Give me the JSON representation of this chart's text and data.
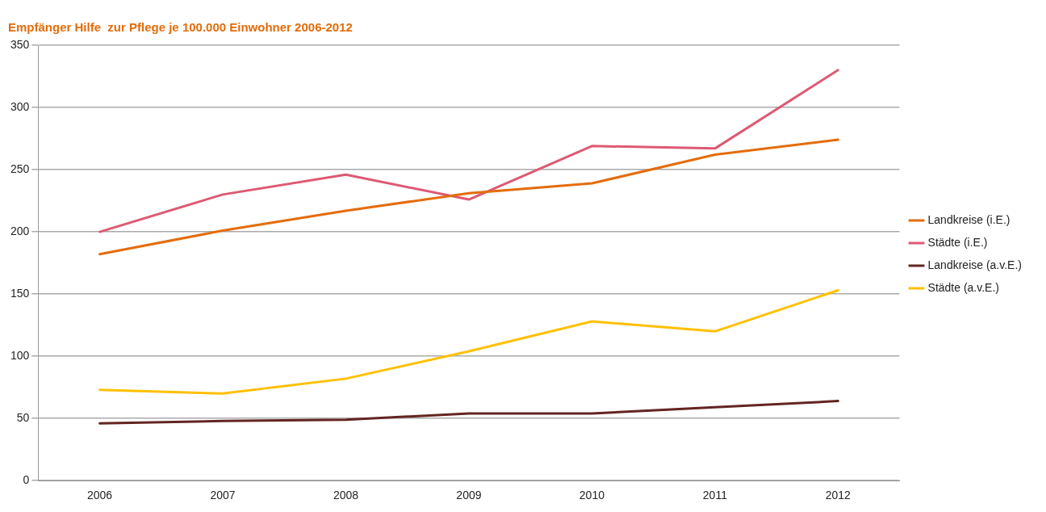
{
  "chart_data": {
    "type": "line",
    "title": "Empfänger Hilfe  zur Pflege je 100.000 Einwohner 2006-2012",
    "categories": [
      "2006",
      "2007",
      "2008",
      "2009",
      "2010",
      "2011",
      "2012"
    ],
    "series": [
      {
        "name": "Landkreise (i.E.)",
        "color": "#e46c0a",
        "values": [
          182,
          201,
          217,
          231,
          239,
          262,
          274
        ]
      },
      {
        "name": "Städte (i.E.)",
        "color": "#dd5a73",
        "values": [
          200,
          230,
          246,
          226,
          269,
          267,
          330
        ]
      },
      {
        "name": "Landkreise (a.v.E.)",
        "color": "#632523",
        "values": [
          46,
          48,
          49,
          54,
          54,
          59,
          64
        ]
      },
      {
        "name": "Städte (a.v.E.)",
        "color": "#ffc000",
        "values": [
          73,
          70,
          82,
          104,
          128,
          120,
          153
        ]
      }
    ],
    "ylim": [
      0,
      350
    ],
    "yticks": [
      0,
      50,
      100,
      150,
      200,
      250,
      300,
      350
    ],
    "grid": "y",
    "legend": "right",
    "marker": "none",
    "line_style": "solid"
  }
}
